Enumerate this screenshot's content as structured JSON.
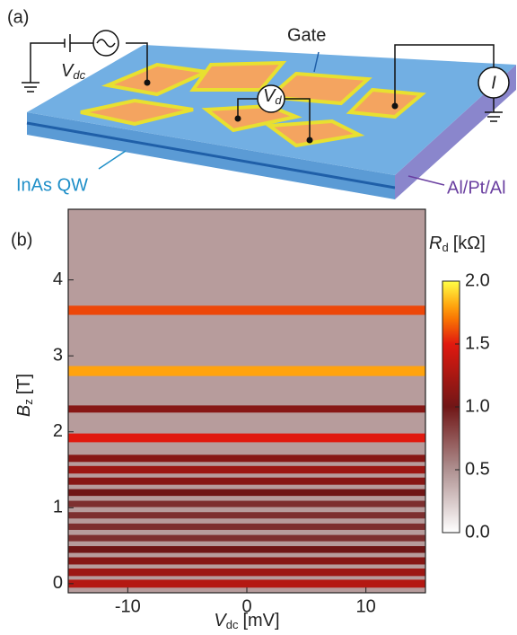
{
  "panel_a": {
    "label": "(a)",
    "gate": "Gate",
    "vdc": "V",
    "vdc_sub": "dc",
    "vd": "V",
    "vd_sub": "d",
    "current": "I",
    "qw": "InAs QW",
    "contact": "Al/Pt/Al"
  },
  "chart_data": {
    "type": "heatmap",
    "panel_label": "(b)",
    "x_label": "V",
    "x_label_sub": "dc",
    "x_unit": "[mV]",
    "y_label": "B",
    "y_label_sub": "z",
    "y_unit": "[T]",
    "xlim": [
      -15,
      15
    ],
    "ylim": [
      -0.12,
      4.93
    ],
    "xticks": [
      -10,
      0,
      10
    ],
    "yticks": [
      0,
      1,
      2,
      3,
      4
    ],
    "background_value": 0.45,
    "bands": {
      "y": [
        3.6,
        2.8,
        2.3,
        1.92,
        1.65,
        1.5,
        1.35,
        1.2,
        1.05,
        0.9,
        0.75,
        0.6,
        0.45,
        0.3,
        0.15,
        0.0
      ],
      "values": [
        1.6,
        1.8,
        1.1,
        1.5,
        1.1,
        1.2,
        1.1,
        1.0,
        0.9,
        0.9,
        0.9,
        0.9,
        1.0,
        1.1,
        1.2,
        1.3
      ]
    },
    "colorbar": {
      "label": "R",
      "label_sub": "d",
      "unit": "[kΩ]",
      "lim": [
        0,
        2
      ],
      "ticks": [
        {
          "value": 0,
          "label": "0.0"
        },
        {
          "value": 0.5,
          "label": "0.5"
        },
        {
          "value": 1,
          "label": "1.0"
        },
        {
          "value": 1.5,
          "label": "1.5"
        },
        {
          "value": 2,
          "label": "2.0"
        }
      ]
    }
  }
}
